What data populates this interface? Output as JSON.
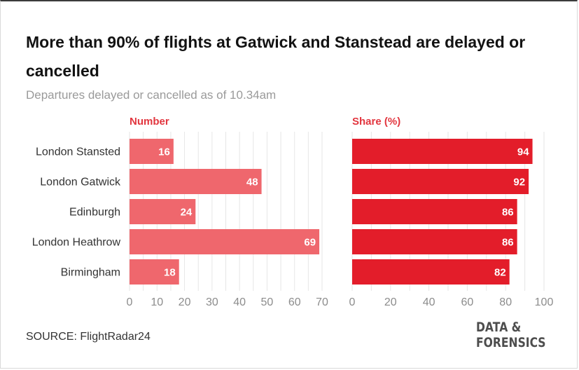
{
  "title": "More than 90% of flights at Gatwick and Stanstead are delayed or cancelled",
  "subtitle": "Departures delayed or cancelled as of 10.34am",
  "source": "SOURCE: FlightRadar24",
  "logo": {
    "line1": "DATA &",
    "line2": "FORENSICS"
  },
  "colors": {
    "number_bar": "#ef676d",
    "share_bar": "#e31d2a",
    "panel_label": "#e2363f",
    "grid": "#e6e6e6"
  },
  "chart_data": [
    {
      "type": "bar",
      "orientation": "horizontal",
      "panel_label": "Number",
      "categories": [
        "London Stansted",
        "London Gatwick",
        "Edinburgh",
        "London Heathrow",
        "Birmingham"
      ],
      "values": [
        16,
        48,
        24,
        69,
        18
      ],
      "value_labels": [
        "16",
        "48",
        "24",
        "69",
        "18"
      ],
      "xlim": [
        0,
        70
      ],
      "ticks": [
        0,
        10,
        20,
        30,
        40,
        50,
        60,
        70
      ],
      "tick_labels": [
        "0",
        "10",
        "20",
        "30",
        "40",
        "50",
        "60",
        "70"
      ],
      "grid": true
    },
    {
      "type": "bar",
      "orientation": "horizontal",
      "panel_label": "Share (%)",
      "categories": [
        "London Stansted",
        "London Gatwick",
        "Edinburgh",
        "London Heathrow",
        "Birmingham"
      ],
      "values": [
        94,
        92,
        86,
        86,
        82
      ],
      "value_labels": [
        "94",
        "92",
        "86",
        "86",
        "82"
      ],
      "xlim": [
        0,
        100
      ],
      "ticks": [
        0,
        20,
        40,
        60,
        80,
        100
      ],
      "tick_labels": [
        "0",
        "20",
        "40",
        "60",
        "80",
        "100"
      ],
      "grid": true
    }
  ]
}
